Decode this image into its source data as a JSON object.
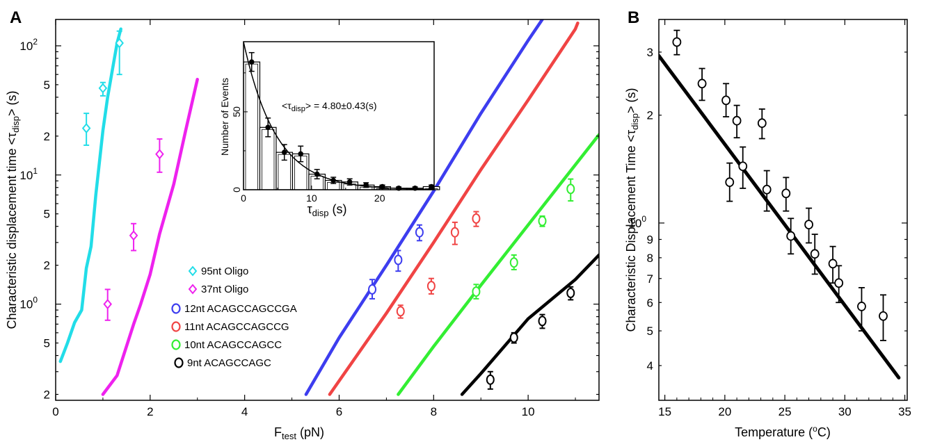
{
  "panels": {
    "a": {
      "letter": "A"
    },
    "b": {
      "letter": "B"
    }
  },
  "chart_data": [
    {
      "id": "A",
      "type": "scatter",
      "xlabel_main": "F",
      "xlabel_sub": "test",
      "xlabel_unit": " (pN)",
      "ylabel_main": "Characteristic displacement time <τ",
      "ylabel_sub": "disp",
      "ylabel_end": "> (s)",
      "xlim": [
        0,
        11.5
      ],
      "ylim": [
        0.18,
        160
      ],
      "yscale": "log",
      "x_ticks": [
        "0",
        "2",
        "4",
        "6",
        "8",
        "10"
      ],
      "y_major_ticks": [
        {
          "value": 1,
          "label": "10"
        },
        {
          "value": 10,
          "label": "10"
        },
        {
          "value": 100,
          "label": "10"
        }
      ],
      "y_major_exponents": [
        "0",
        "1",
        "2"
      ],
      "y_minor_labels": [
        {
          "value": 0.2,
          "label": "2"
        },
        {
          "value": 0.5,
          "label": "5"
        },
        {
          "value": 2,
          "label": "2"
        },
        {
          "value": 5,
          "label": "5"
        },
        {
          "value": 20,
          "label": "2"
        },
        {
          "value": 50,
          "label": "5"
        }
      ],
      "legend_position": "lower-left",
      "series": [
        {
          "name": "95nt Oligo",
          "color": "#22dde8",
          "marker": "diamond",
          "points": [
            [
              0.65,
              23,
              17,
              30
            ],
            [
              1.0,
              47,
              41,
              52
            ],
            [
              1.35,
              105,
              60,
              130
            ]
          ],
          "fit": [
            [
              0.1,
              0.36
            ],
            [
              0.25,
              0.5
            ],
            [
              0.4,
              0.72
            ],
            [
              0.55,
              0.9
            ],
            [
              0.65,
              1.9
            ],
            [
              0.75,
              2.8
            ],
            [
              0.85,
              7
            ],
            [
              1.0,
              22
            ],
            [
              1.1,
              40
            ],
            [
              1.2,
              65
            ],
            [
              1.3,
              105
            ],
            [
              1.38,
              135
            ]
          ]
        },
        {
          "name": "37nt Oligo",
          "color": "#ee22ee",
          "marker": "diamond",
          "points": [
            [
              1.1,
              1.0,
              0.75,
              1.3
            ],
            [
              1.65,
              3.4,
              2.6,
              4.2
            ],
            [
              2.2,
              14.5,
              10.5,
              19
            ]
          ],
          "fit": [
            [
              1.0,
              0.2
            ],
            [
              1.3,
              0.28
            ],
            [
              1.65,
              0.7
            ],
            [
              1.8,
              1.0
            ],
            [
              2.0,
              1.7
            ],
            [
              2.2,
              3.5
            ],
            [
              2.5,
              8.5
            ],
            [
              2.75,
              22
            ],
            [
              3.0,
              55
            ]
          ]
        },
        {
          "name": "12nt ACAGCCAGCCGA",
          "color": "#3d3def",
          "marker": "circle",
          "points": [
            [
              6.7,
              1.3,
              1.1,
              1.55
            ],
            [
              7.25,
              2.2,
              1.8,
              2.6
            ],
            [
              7.7,
              3.6,
              3.1,
              4.1
            ]
          ],
          "fit": [
            [
              5.3,
              0.2
            ],
            [
              6.0,
              0.55
            ],
            [
              7.0,
              2.0
            ],
            [
              8.0,
              7.5
            ],
            [
              9.0,
              30
            ],
            [
              10.0,
              110
            ],
            [
              10.3,
              160
            ]
          ]
        },
        {
          "name": "11nt ACAGCCAGCCG",
          "color": "#f04444",
          "marker": "circle",
          "points": [
            [
              7.3,
              0.88,
              0.78,
              0.98
            ],
            [
              7.95,
              1.38,
              1.2,
              1.58
            ],
            [
              8.45,
              3.6,
              2.9,
              4.3
            ],
            [
              8.9,
              4.6,
              4.0,
              5.2
            ]
          ],
          "fit": [
            [
              5.8,
              0.2
            ],
            [
              7.0,
              0.85
            ],
            [
              8.0,
              3.0
            ],
            [
              9.0,
              11
            ],
            [
              10.0,
              38
            ],
            [
              11.0,
              135
            ],
            [
              11.05,
              150
            ]
          ]
        },
        {
          "name": "10nt ACAGCCAGCC",
          "color": "#33ee33",
          "marker": "circle",
          "points": [
            [
              8.9,
              1.25,
              1.1,
              1.42
            ],
            [
              9.7,
              2.1,
              1.85,
              2.4
            ],
            [
              10.3,
              4.4,
              4.0,
              4.8
            ],
            [
              10.9,
              7.8,
              6.3,
              9.3
            ]
          ],
          "fit": [
            [
              7.25,
              0.2
            ],
            [
              8.0,
              0.47
            ],
            [
              9.0,
              1.4
            ],
            [
              10.0,
              4.1
            ],
            [
              11.0,
              12
            ],
            [
              11.5,
              20.5
            ]
          ]
        },
        {
          "name": "9nt ACAGCCAGC",
          "color": "#000000",
          "marker": "circle",
          "points": [
            [
              9.2,
              0.26,
              0.22,
              0.3
            ],
            [
              9.7,
              0.55,
              0.5,
              0.6
            ],
            [
              10.3,
              0.74,
              0.65,
              0.83
            ],
            [
              10.9,
              1.22,
              1.08,
              1.36
            ]
          ],
          "fit": [
            [
              8.6,
              0.2
            ],
            [
              9.0,
              0.29
            ],
            [
              10.0,
              0.77
            ],
            [
              11.0,
              1.55
            ],
            [
              11.5,
              2.4
            ]
          ]
        }
      ],
      "inset": {
        "type": "bar",
        "xlabel_main": "τ",
        "xlabel_sub": "disp",
        "xlabel_unit": " (s)",
        "ylabel": "Number of Events",
        "xlim": [
          0,
          28
        ],
        "ylim": [
          0,
          95
        ],
        "x_ticks": [
          "0",
          "10",
          "20"
        ],
        "y_ticks": [
          "0",
          "50"
        ],
        "annotation_main": "<τ",
        "annotation_sub": "disp",
        "annotation_end": "> = 4.80±0.43(s)",
        "bin_width": 2.4,
        "bins": [
          {
            "x": 1.2,
            "y": 82,
            "err": 6
          },
          {
            "x": 3.6,
            "y": 40,
            "err": 6
          },
          {
            "x": 6.0,
            "y": 24,
            "err": 5
          },
          {
            "x": 8.4,
            "y": 23,
            "err": 5
          },
          {
            "x": 10.8,
            "y": 10,
            "err": 3
          },
          {
            "x": 13.2,
            "y": 6,
            "err": 2
          },
          {
            "x": 15.6,
            "y": 5,
            "err": 2
          },
          {
            "x": 18.0,
            "y": 3,
            "err": 1.5
          },
          {
            "x": 20.4,
            "y": 2,
            "err": 1
          },
          {
            "x": 22.8,
            "y": 1,
            "err": 0.8
          },
          {
            "x": 25.2,
            "y": 1,
            "err": 0.8
          },
          {
            "x": 27.6,
            "y": 2,
            "err": 1
          }
        ],
        "fit_amplitude": 95,
        "fit_tau": 4.8
      }
    },
    {
      "id": "B",
      "type": "scatter",
      "xlabel_main": "Temperature (",
      "xlabel_sup": "o",
      "xlabel_end": "C)",
      "ylabel_main": "Characteristic Displacement Time <τ",
      "ylabel_sub": "disp",
      "ylabel_end": "> (s)",
      "xlim": [
        14.5,
        35.2
      ],
      "ylim": [
        0.32,
        3.7
      ],
      "yscale": "log",
      "x_ticks": [
        "15",
        "20",
        "25",
        "30",
        "35"
      ],
      "y_major_tick": {
        "value": 1,
        "label": "10",
        "exponent": "0"
      },
      "y_minor_labels": [
        {
          "value": 0.4,
          "label": "4"
        },
        {
          "value": 0.5,
          "label": "5"
        },
        {
          "value": 0.6,
          "label": "6"
        },
        {
          "value": 0.7,
          "label": "7"
        },
        {
          "value": 0.8,
          "label": "8"
        },
        {
          "value": 0.9,
          "label": "9"
        },
        {
          "value": 2,
          "label": "2"
        },
        {
          "value": 3,
          "label": "3"
        }
      ],
      "series": [
        {
          "color": "#000000",
          "marker": "circle",
          "points": [
            [
              16.0,
              3.2,
              2.95,
              3.45
            ],
            [
              18.1,
              2.45,
              2.2,
              2.7
            ],
            [
              20.1,
              2.2,
              1.98,
              2.45
            ],
            [
              20.4,
              1.3,
              1.15,
              1.47
            ],
            [
              21.0,
              1.93,
              1.73,
              2.13
            ],
            [
              21.5,
              1.44,
              1.25,
              1.63
            ],
            [
              23.1,
              1.9,
              1.72,
              2.08
            ],
            [
              23.5,
              1.24,
              1.08,
              1.4
            ],
            [
              25.1,
              1.21,
              1.08,
              1.34
            ],
            [
              25.5,
              0.92,
              0.82,
              1.03
            ],
            [
              27.0,
              0.99,
              0.88,
              1.1
            ],
            [
              27.5,
              0.82,
              0.72,
              0.93
            ],
            [
              29.0,
              0.77,
              0.68,
              0.86
            ],
            [
              29.5,
              0.68,
              0.6,
              0.76
            ],
            [
              31.4,
              0.585,
              0.5,
              0.66
            ],
            [
              33.2,
              0.55,
              0.47,
              0.63
            ]
          ],
          "fit": [
            [
              14.5,
              2.93
            ],
            [
              34.5,
              0.37
            ]
          ]
        }
      ]
    }
  ]
}
